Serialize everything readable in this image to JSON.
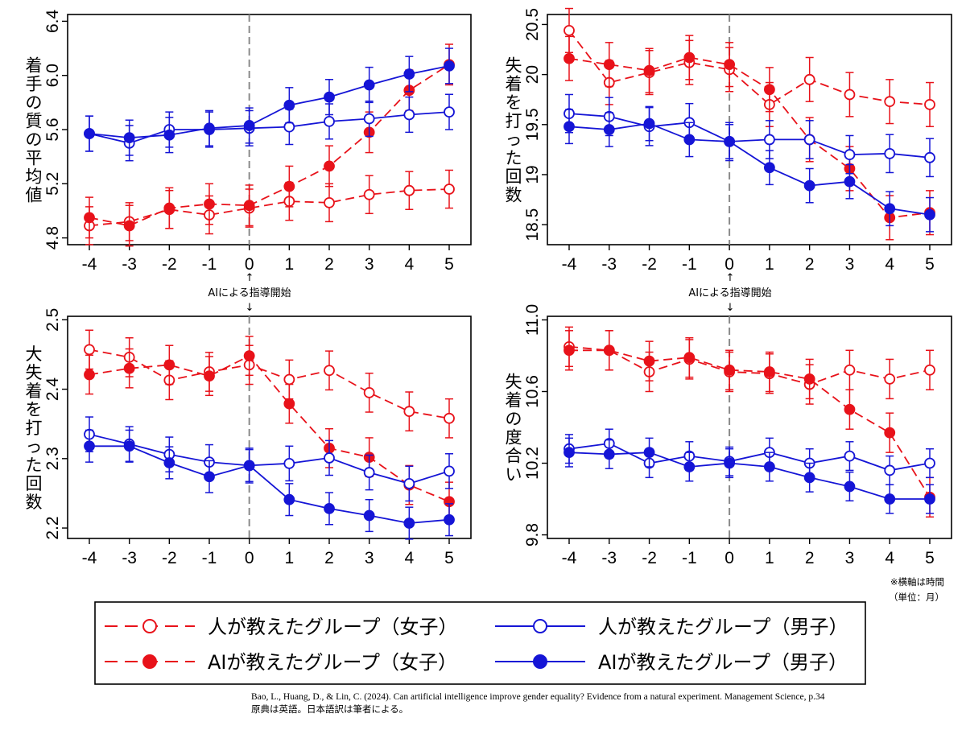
{
  "colors": {
    "female": "#e8121a",
    "male": "#1515d6",
    "vline": "#8a8a8a"
  },
  "annotations": {
    "ai_start": "AIによる指導開始"
  },
  "legend": [
    {
      "label": "人が教えたグループ（女子）",
      "series": "human_female"
    },
    {
      "label": "人が教えたグループ（男子）",
      "series": "human_male"
    },
    {
      "label": "AIが教えたグループ（女子）",
      "series": "ai_female"
    },
    {
      "label": "AIが教えたグループ（男子）",
      "series": "ai_male"
    }
  ],
  "note": {
    "line1": "※横軸は時間",
    "line2": "（単位：月）"
  },
  "citation": {
    "line1": "Bao, L., Huang, D., & Lin, C. (2024). Can artificial intelligence improve gender equality? Evidence from a natural experiment. Management Science, p.34",
    "line2": "原典は英語。日本語訳は筆者による。"
  },
  "chart_data": [
    {
      "type": "line",
      "ylabel": "着手の質の平均値",
      "x": [
        -4,
        -3,
        -2,
        -1,
        0,
        1,
        2,
        3,
        4,
        5
      ],
      "xticks": [
        "-4",
        "-3",
        "-2",
        "-1",
        "0",
        "1",
        "2",
        "3",
        "4",
        "5"
      ],
      "ylim": [
        4.75,
        6.45
      ],
      "yticks": [
        4.8,
        5.2,
        5.6,
        6.0,
        6.4
      ],
      "ytick_labels": [
        "4.8",
        "5.2",
        "5.6",
        "6.0",
        "6.4"
      ],
      "vline_x": 0,
      "series": [
        {
          "name": "人が教えたグループ（女子）",
          "key": "human_female",
          "filled": false,
          "dashed": true,
          "values": [
            4.89,
            4.92,
            5.01,
            4.97,
            5.02,
            5.07,
            5.06,
            5.12,
            5.15,
            5.16
          ],
          "err": 0.14
        },
        {
          "name": "AIが教えたグループ（女子）",
          "key": "ai_female",
          "filled": true,
          "dashed": true,
          "values": [
            4.95,
            4.89,
            5.02,
            5.05,
            5.04,
            5.18,
            5.33,
            5.58,
            5.89,
            6.08
          ],
          "err": 0.15
        },
        {
          "name": "人が教えたグループ（男子）",
          "key": "human_male",
          "filled": false,
          "dashed": false,
          "values": [
            5.57,
            5.5,
            5.6,
            5.6,
            5.61,
            5.62,
            5.66,
            5.68,
            5.71,
            5.73
          ],
          "err": 0.13
        },
        {
          "name": "AIが教えたグループ（男子）",
          "key": "ai_male",
          "filled": true,
          "dashed": false,
          "values": [
            5.57,
            5.54,
            5.56,
            5.61,
            5.63,
            5.78,
            5.84,
            5.93,
            6.01,
            6.07
          ],
          "err": 0.13
        }
      ]
    },
    {
      "type": "line",
      "ylabel": "失着を打った回数",
      "x": [
        -4,
        -3,
        -2,
        -1,
        0,
        1,
        2,
        3,
        4,
        5
      ],
      "xticks": [
        "-4",
        "-3",
        "-2",
        "-1",
        "0",
        "1",
        "2",
        "3",
        "4",
        "5"
      ],
      "ylim": [
        18.3,
        20.6
      ],
      "yticks": [
        18.5,
        19.0,
        19.5,
        20.0,
        20.5
      ],
      "ytick_labels": [
        "18.5",
        "19",
        "19.5",
        "20",
        "20.5"
      ],
      "vline_x": 0,
      "series": [
        {
          "name": "人が教えたグループ（女子）",
          "key": "human_female",
          "filled": false,
          "dashed": true,
          "values": [
            20.44,
            19.92,
            20.02,
            20.12,
            20.05,
            19.7,
            19.95,
            19.8,
            19.73,
            19.7
          ],
          "err": 0.22
        },
        {
          "name": "AIが教えたグループ（女子）",
          "key": "ai_female",
          "filled": true,
          "dashed": true,
          "values": [
            20.16,
            20.1,
            20.04,
            20.17,
            20.1,
            19.85,
            19.35,
            19.06,
            18.57,
            18.62
          ],
          "err": 0.22
        },
        {
          "name": "人が教えたグループ（男子）",
          "key": "human_male",
          "filled": false,
          "dashed": false,
          "values": [
            19.61,
            19.58,
            19.48,
            19.52,
            19.33,
            19.35,
            19.35,
            19.2,
            19.21,
            19.17
          ],
          "err": 0.19
        },
        {
          "name": "AIが教えたグループ（男子）",
          "key": "ai_male",
          "filled": true,
          "dashed": false,
          "values": [
            19.48,
            19.45,
            19.51,
            19.35,
            19.33,
            19.07,
            18.89,
            18.93,
            18.66,
            18.6
          ],
          "err": 0.17
        }
      ]
    },
    {
      "type": "line",
      "ylabel": "大失着を打った回数",
      "x": [
        -4,
        -3,
        -2,
        -1,
        0,
        1,
        2,
        3,
        4,
        5
      ],
      "xticks": [
        "-4",
        "-3",
        "-2",
        "-1",
        "0",
        "1",
        "2",
        "3",
        "4",
        "5"
      ],
      "ylim": [
        2.185,
        2.505
      ],
      "yticks": [
        2.2,
        2.3,
        2.4,
        2.5
      ],
      "ytick_labels": [
        "2.2",
        "2.3",
        "2.4",
        "2.5"
      ],
      "vline_x": 0,
      "series": [
        {
          "name": "人が教えたグループ（女子）",
          "key": "human_female",
          "filled": false,
          "dashed": true,
          "values": [
            2.457,
            2.446,
            2.413,
            2.425,
            2.435,
            2.414,
            2.427,
            2.395,
            2.368,
            2.358
          ],
          "err": 0.028
        },
        {
          "name": "AIが教えたグループ（女子）",
          "key": "ai_female",
          "filled": true,
          "dashed": true,
          "values": [
            2.421,
            2.43,
            2.435,
            2.419,
            2.448,
            2.379,
            2.315,
            2.302,
            2.262,
            2.238
          ],
          "err": 0.028
        },
        {
          "name": "人が教えたグループ（男子）",
          "key": "human_male",
          "filled": false,
          "dashed": false,
          "values": [
            2.335,
            2.321,
            2.306,
            2.295,
            2.29,
            2.293,
            2.301,
            2.28,
            2.264,
            2.282
          ],
          "err": 0.025
        },
        {
          "name": "AIが教えたグループ（男子）",
          "key": "ai_male",
          "filled": true,
          "dashed": false,
          "values": [
            2.318,
            2.318,
            2.294,
            2.274,
            2.29,
            2.241,
            2.228,
            2.218,
            2.207,
            2.212
          ],
          "err": 0.023
        }
      ]
    },
    {
      "type": "line",
      "ylabel": "失着の度合い",
      "x": [
        -4,
        -3,
        -2,
        -1,
        0,
        1,
        2,
        3,
        4,
        5
      ],
      "xticks": [
        "-4",
        "-3",
        "-2",
        "-1",
        "0",
        "1",
        "2",
        "3",
        "4",
        "5"
      ],
      "ylim": [
        9.78,
        11.02
      ],
      "yticks": [
        9.8,
        10.2,
        10.6,
        11.0
      ],
      "ytick_labels": [
        "9.8",
        "10.2",
        "10.6",
        "11.0"
      ],
      "vline_x": 0,
      "series": [
        {
          "name": "人が教えたグループ（女子）",
          "key": "human_female",
          "filled": false,
          "dashed": true,
          "values": [
            10.85,
            10.83,
            10.71,
            10.78,
            10.71,
            10.7,
            10.64,
            10.72,
            10.67,
            10.72
          ],
          "err": 0.11
        },
        {
          "name": "AIが教えたグループ（女子）",
          "key": "ai_female",
          "filled": true,
          "dashed": true,
          "values": [
            10.83,
            10.83,
            10.77,
            10.79,
            10.72,
            10.71,
            10.67,
            10.5,
            10.37,
            10.01
          ],
          "err": 0.11
        },
        {
          "name": "人が教えたグループ（男子）",
          "key": "human_male",
          "filled": false,
          "dashed": false,
          "values": [
            10.28,
            10.31,
            10.2,
            10.24,
            10.21,
            10.26,
            10.2,
            10.24,
            10.16,
            10.2
          ],
          "err": 0.08
        },
        {
          "name": "AIが教えたグループ（男子）",
          "key": "ai_male",
          "filled": true,
          "dashed": false,
          "values": [
            10.26,
            10.25,
            10.26,
            10.18,
            10.2,
            10.18,
            10.12,
            10.07,
            10.0,
            10.0
          ],
          "err": 0.08
        }
      ]
    }
  ]
}
